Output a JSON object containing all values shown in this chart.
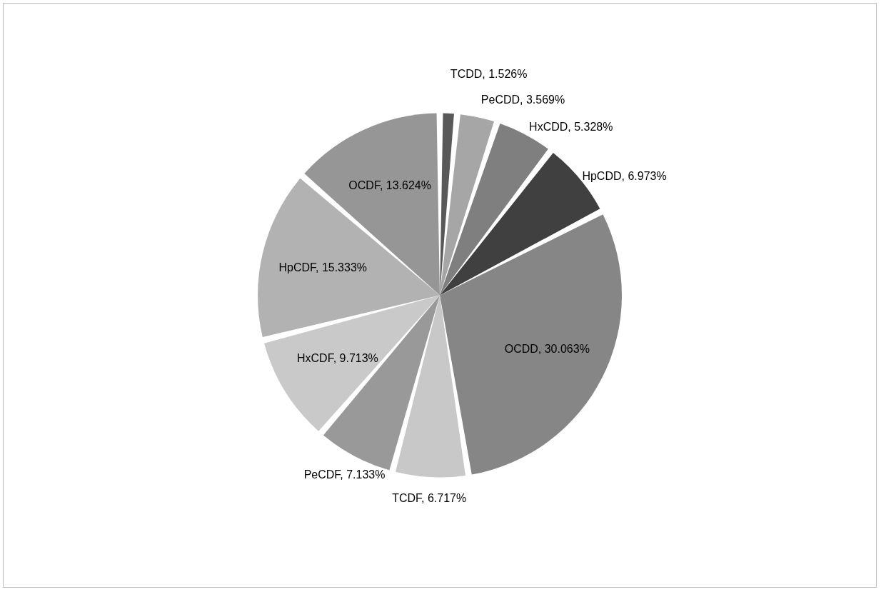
{
  "chart_data": {
    "type": "pie",
    "categories": [
      "TCDD",
      "PeCDD",
      "HxCDD",
      "HpCDD",
      "OCDD",
      "TCDF",
      "PeCDF",
      "HxCDF",
      "HpCDF",
      "OCDF"
    ],
    "values": [
      1.526,
      3.569,
      5.328,
      6.973,
      30.063,
      6.717,
      7.133,
      9.713,
      15.333,
      13.624
    ],
    "value_labels": [
      "1.526%",
      "3.569%",
      "5.328%",
      "6.973%",
      "30.063%",
      "6.717%",
      "7.133%",
      "9.713%",
      "15.333%",
      "13.624%"
    ],
    "colors": [
      "#595959",
      "#a6a6a6",
      "#7f7f7f",
      "#404040",
      "#868686",
      "#c8c8c8",
      "#999999",
      "#c9c9c9",
      "#b2b2b2",
      "#969696"
    ]
  }
}
